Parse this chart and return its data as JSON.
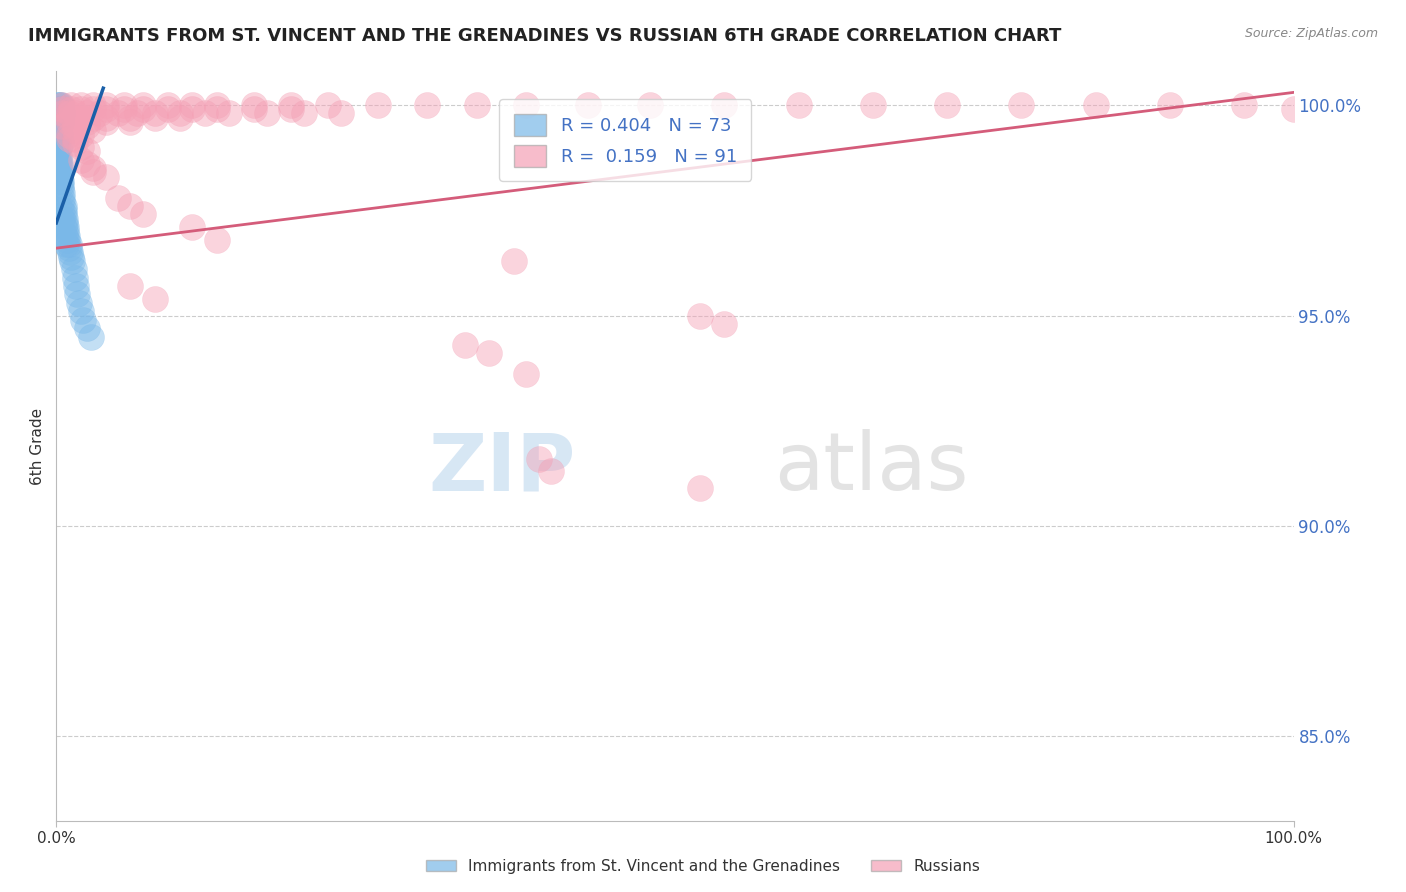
{
  "title": "IMMIGRANTS FROM ST. VINCENT AND THE GRENADINES VS RUSSIAN 6TH GRADE CORRELATION CHART",
  "source_text": "Source: ZipAtlas.com",
  "ylabel": "6th Grade",
  "xlim": [
    0.0,
    1.0
  ],
  "ylim": [
    0.83,
    1.008
  ],
  "y_tick_values": [
    0.85,
    0.9,
    0.95,
    1.0
  ],
  "legend_label1": "Immigrants from St. Vincent and the Grenadines",
  "legend_label2": "Russians",
  "R1": 0.404,
  "N1": 73,
  "R2": 0.159,
  "N2": 91,
  "color_blue": "#7ab8e8",
  "color_pink": "#f4a0b5",
  "color_blue_line": "#1a5fa8",
  "color_pink_line": "#d45c7a",
  "blue_line_x": [
    0.0,
    0.038
  ],
  "blue_line_y": [
    0.972,
    1.004
  ],
  "pink_line_x": [
    0.0,
    1.0
  ],
  "pink_line_y": [
    0.966,
    1.003
  ],
  "blue_dots": [
    [
      0.001,
      1.0
    ],
    [
      0.002,
      1.0
    ],
    [
      0.003,
      1.0
    ],
    [
      0.004,
      1.0
    ],
    [
      0.001,
      0.999
    ],
    [
      0.002,
      0.999
    ],
    [
      0.003,
      0.999
    ],
    [
      0.001,
      0.998
    ],
    [
      0.002,
      0.998
    ],
    [
      0.003,
      0.998
    ],
    [
      0.004,
      0.998
    ],
    [
      0.005,
      0.998
    ],
    [
      0.001,
      0.997
    ],
    [
      0.002,
      0.997
    ],
    [
      0.003,
      0.997
    ],
    [
      0.001,
      0.996
    ],
    [
      0.002,
      0.996
    ],
    [
      0.003,
      0.996
    ],
    [
      0.004,
      0.996
    ],
    [
      0.001,
      0.995
    ],
    [
      0.002,
      0.995
    ],
    [
      0.001,
      0.994
    ],
    [
      0.002,
      0.994
    ],
    [
      0.001,
      0.993
    ],
    [
      0.002,
      0.993
    ],
    [
      0.001,
      0.992
    ],
    [
      0.002,
      0.992
    ],
    [
      0.001,
      0.991
    ],
    [
      0.001,
      0.99
    ],
    [
      0.002,
      0.99
    ],
    [
      0.001,
      0.989
    ],
    [
      0.001,
      0.988
    ],
    [
      0.002,
      0.987
    ],
    [
      0.002,
      0.986
    ],
    [
      0.003,
      0.985
    ],
    [
      0.003,
      0.984
    ],
    [
      0.003,
      0.983
    ],
    [
      0.004,
      0.982
    ],
    [
      0.004,
      0.981
    ],
    [
      0.004,
      0.98
    ],
    [
      0.005,
      0.979
    ],
    [
      0.005,
      0.978
    ],
    [
      0.005,
      0.977
    ],
    [
      0.006,
      0.976
    ],
    [
      0.006,
      0.975
    ],
    [
      0.006,
      0.974
    ],
    [
      0.007,
      0.973
    ],
    [
      0.007,
      0.972
    ],
    [
      0.008,
      0.971
    ],
    [
      0.008,
      0.97
    ],
    [
      0.009,
      0.969
    ],
    [
      0.009,
      0.968
    ],
    [
      0.01,
      0.967
    ],
    [
      0.01,
      0.966
    ],
    [
      0.011,
      0.965
    ],
    [
      0.012,
      0.964
    ],
    [
      0.013,
      0.963
    ],
    [
      0.014,
      0.961
    ],
    [
      0.015,
      0.959
    ],
    [
      0.016,
      0.957
    ],
    [
      0.017,
      0.955
    ],
    [
      0.018,
      0.953
    ],
    [
      0.02,
      0.951
    ],
    [
      0.022,
      0.949
    ],
    [
      0.025,
      0.947
    ],
    [
      0.028,
      0.945
    ],
    [
      0.001,
      0.986
    ],
    [
      0.002,
      0.984
    ],
    [
      0.003,
      0.982
    ],
    [
      0.002,
      0.988
    ],
    [
      0.003,
      0.986
    ],
    [
      0.001,
      0.984
    ],
    [
      0.004,
      0.975
    ],
    [
      0.005,
      0.973
    ],
    [
      0.006,
      0.971
    ],
    [
      0.007,
      0.969
    ],
    [
      0.008,
      0.967
    ],
    [
      0.003,
      0.993
    ],
    [
      0.004,
      0.991
    ]
  ],
  "pink_dots": [
    [
      0.005,
      1.0
    ],
    [
      0.012,
      1.0
    ],
    [
      0.02,
      1.0
    ],
    [
      0.03,
      1.0
    ],
    [
      0.04,
      1.0
    ],
    [
      0.055,
      1.0
    ],
    [
      0.07,
      1.0
    ],
    [
      0.09,
      1.0
    ],
    [
      0.11,
      1.0
    ],
    [
      0.13,
      1.0
    ],
    [
      0.16,
      1.0
    ],
    [
      0.19,
      1.0
    ],
    [
      0.22,
      1.0
    ],
    [
      0.26,
      1.0
    ],
    [
      0.3,
      1.0
    ],
    [
      0.34,
      1.0
    ],
    [
      0.38,
      1.0
    ],
    [
      0.43,
      1.0
    ],
    [
      0.48,
      1.0
    ],
    [
      0.54,
      1.0
    ],
    [
      0.6,
      1.0
    ],
    [
      0.66,
      1.0
    ],
    [
      0.72,
      1.0
    ],
    [
      0.78,
      1.0
    ],
    [
      0.84,
      1.0
    ],
    [
      0.9,
      1.0
    ],
    [
      0.96,
      1.0
    ],
    [
      0.005,
      0.999
    ],
    [
      0.012,
      0.999
    ],
    [
      0.02,
      0.999
    ],
    [
      0.03,
      0.999
    ],
    [
      0.04,
      0.999
    ],
    [
      0.055,
      0.999
    ],
    [
      0.07,
      0.999
    ],
    [
      0.09,
      0.999
    ],
    [
      0.11,
      0.999
    ],
    [
      0.13,
      0.999
    ],
    [
      0.16,
      0.999
    ],
    [
      0.19,
      0.999
    ],
    [
      0.005,
      0.998
    ],
    [
      0.01,
      0.998
    ],
    [
      0.015,
      0.998
    ],
    [
      0.025,
      0.998
    ],
    [
      0.035,
      0.998
    ],
    [
      0.05,
      0.998
    ],
    [
      0.065,
      0.998
    ],
    [
      0.08,
      0.998
    ],
    [
      0.1,
      0.998
    ],
    [
      0.12,
      0.998
    ],
    [
      0.14,
      0.998
    ],
    [
      0.17,
      0.998
    ],
    [
      0.2,
      0.998
    ],
    [
      0.23,
      0.998
    ],
    [
      0.01,
      0.997
    ],
    [
      0.02,
      0.997
    ],
    [
      0.03,
      0.997
    ],
    [
      0.04,
      0.997
    ],
    [
      0.06,
      0.997
    ],
    [
      0.08,
      0.997
    ],
    [
      0.1,
      0.997
    ],
    [
      0.01,
      0.996
    ],
    [
      0.025,
      0.996
    ],
    [
      0.04,
      0.996
    ],
    [
      0.06,
      0.996
    ],
    [
      0.005,
      0.995
    ],
    [
      0.015,
      0.995
    ],
    [
      0.025,
      0.995
    ],
    [
      0.015,
      0.994
    ],
    [
      0.03,
      0.994
    ],
    [
      0.01,
      0.993
    ],
    [
      0.02,
      0.993
    ],
    [
      0.01,
      0.992
    ],
    [
      0.015,
      0.992
    ],
    [
      0.015,
      0.991
    ],
    [
      0.02,
      0.99
    ],
    [
      0.025,
      0.989
    ],
    [
      0.02,
      0.987
    ],
    [
      0.025,
      0.986
    ],
    [
      0.03,
      0.985
    ],
    [
      0.03,
      0.984
    ],
    [
      0.04,
      0.983
    ],
    [
      0.05,
      0.978
    ],
    [
      0.06,
      0.976
    ],
    [
      0.07,
      0.974
    ],
    [
      0.11,
      0.971
    ],
    [
      0.13,
      0.968
    ],
    [
      0.37,
      0.963
    ],
    [
      0.06,
      0.957
    ],
    [
      0.08,
      0.954
    ],
    [
      0.52,
      0.95
    ],
    [
      0.54,
      0.948
    ],
    [
      0.33,
      0.943
    ],
    [
      0.35,
      0.941
    ],
    [
      0.38,
      0.936
    ],
    [
      0.39,
      0.916
    ],
    [
      0.4,
      0.913
    ],
    [
      0.52,
      0.909
    ],
    [
      1.0,
      0.999
    ]
  ],
  "watermark_text": "ZIPatlas",
  "grid_color": "#cccccc",
  "background_color": "#ffffff"
}
